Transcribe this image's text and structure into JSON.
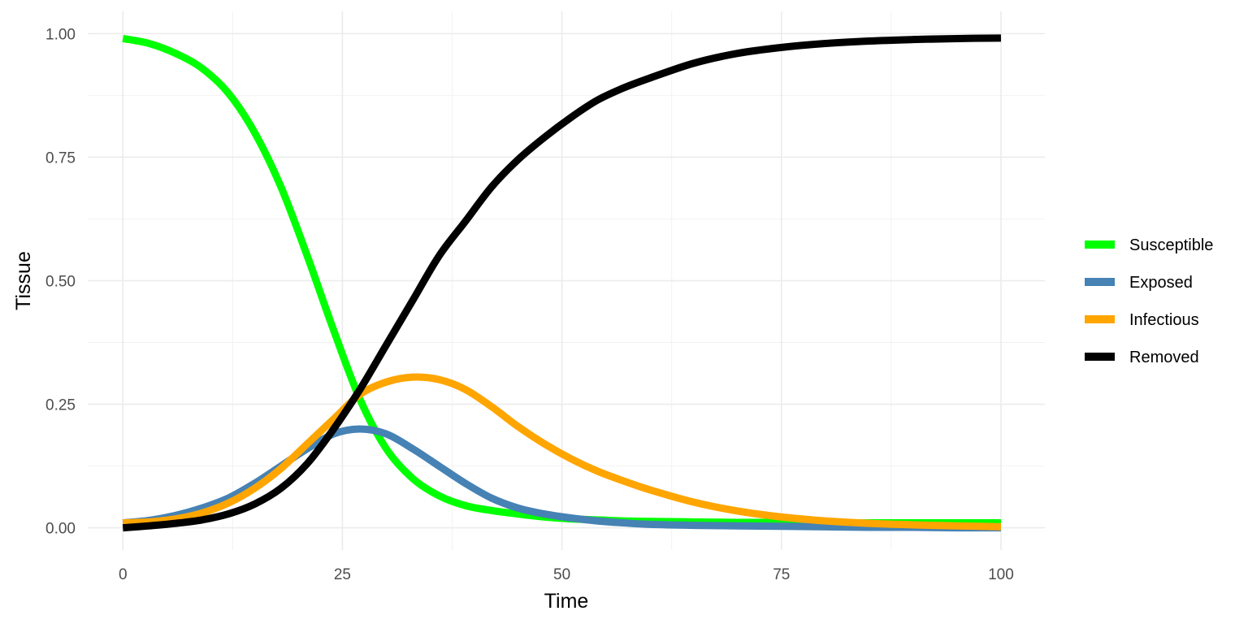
{
  "chart_data": {
    "type": "line",
    "title": "",
    "xlabel": "Time",
    "ylabel": "Tissue",
    "xlim": [
      -4,
      105
    ],
    "ylim": [
      -0.045,
      1.045
    ],
    "x_ticks": [
      0,
      25,
      50,
      75,
      100
    ],
    "x_tick_labels": [
      "0",
      "25",
      "50",
      "75",
      "100"
    ],
    "y_ticks": [
      0,
      0.25,
      0.5,
      0.75,
      1.0
    ],
    "y_tick_labels": [
      "0.00",
      "0.25",
      "0.50",
      "0.75",
      "1.00"
    ],
    "x_minor": [
      12.5,
      37.5,
      62.5,
      87.5
    ],
    "y_minor": [
      0.125,
      0.375,
      0.625,
      0.875
    ],
    "grid": true,
    "legend_position": "right",
    "x": [
      0,
      3,
      6,
      9,
      12,
      15,
      18,
      21,
      24,
      27,
      30,
      33,
      36,
      39,
      42,
      45,
      48,
      51,
      54,
      57,
      60,
      65,
      70,
      75,
      80,
      85,
      90,
      95,
      100
    ],
    "series": [
      {
        "name": "Susceptible",
        "color": "#00ff00",
        "values": [
          0.99,
          0.98,
          0.96,
          0.93,
          0.88,
          0.8,
          0.69,
          0.55,
          0.4,
          0.26,
          0.16,
          0.1,
          0.065,
          0.045,
          0.035,
          0.028,
          0.022,
          0.018,
          0.016,
          0.014,
          0.013,
          0.012,
          0.011,
          0.011,
          0.01,
          0.01,
          0.01,
          0.01,
          0.01
        ]
      },
      {
        "name": "Exposed",
        "color": "#4682b4",
        "values": [
          0.01,
          0.015,
          0.025,
          0.04,
          0.06,
          0.09,
          0.125,
          0.16,
          0.19,
          0.2,
          0.19,
          0.16,
          0.125,
          0.09,
          0.06,
          0.04,
          0.028,
          0.02,
          0.014,
          0.01,
          0.007,
          0.005,
          0.004,
          0.003,
          0.002,
          0.001,
          0.001,
          0.0,
          0.0
        ]
      },
      {
        "name": "Infectious",
        "color": "#ffa500",
        "values": [
          0.01,
          0.012,
          0.018,
          0.03,
          0.05,
          0.08,
          0.12,
          0.17,
          0.22,
          0.27,
          0.295,
          0.305,
          0.3,
          0.28,
          0.245,
          0.205,
          0.17,
          0.14,
          0.115,
          0.095,
          0.077,
          0.052,
          0.034,
          0.022,
          0.014,
          0.009,
          0.006,
          0.004,
          0.002
        ]
      },
      {
        "name": "Removed",
        "color": "#000000",
        "values": [
          0.0,
          0.004,
          0.009,
          0.016,
          0.028,
          0.048,
          0.08,
          0.13,
          0.2,
          0.28,
          0.37,
          0.46,
          0.55,
          0.62,
          0.69,
          0.745,
          0.79,
          0.83,
          0.865,
          0.89,
          0.91,
          0.94,
          0.96,
          0.972,
          0.98,
          0.985,
          0.988,
          0.99,
          0.991
        ]
      }
    ]
  }
}
